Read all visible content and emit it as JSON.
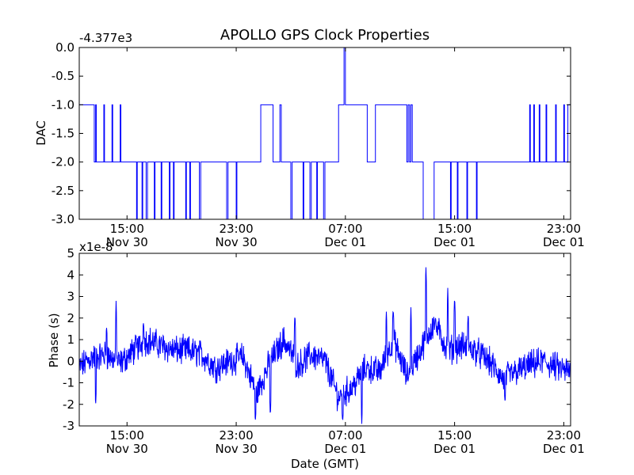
{
  "figure": {
    "title": "APOLLO GPS Clock Properties"
  },
  "chart_data": [
    {
      "type": "line",
      "panel": "top",
      "ylabel": "DAC",
      "offset_label": "-4.377e3",
      "ylim": [
        -3.0,
        0.0
      ],
      "xlim_hours": [
        11.5,
        47.5
      ],
      "y_ticks": [
        "0.0",
        "-0.5",
        "-1.0",
        "-1.5",
        "-2.0",
        "-2.5",
        "-3.0"
      ],
      "y_tick_values": [
        0.0,
        -0.5,
        -1.0,
        -1.5,
        -2.0,
        -2.5,
        -3.0
      ],
      "x_ticks": [
        {
          "time": "15:00",
          "date": "Nov 30",
          "hour": 15
        },
        {
          "time": "23:00",
          "date": "Nov 30",
          "hour": 23
        },
        {
          "time": "07:00",
          "date": "Dec 01",
          "hour": 31
        },
        {
          "time": "15:00",
          "date": "Dec 01",
          "hour": 39
        },
        {
          "time": "23:00",
          "date": "Dec 01",
          "hour": 47
        }
      ],
      "series": [
        {
          "color": "#0000ff",
          "steps": [
            [
              11.5,
              -1
            ],
            [
              12.6,
              -2
            ],
            [
              12.7,
              -1
            ],
            [
              12.75,
              -2
            ],
            [
              13.3,
              -1
            ],
            [
              13.35,
              -2
            ],
            [
              13.9,
              -1
            ],
            [
              13.95,
              -2
            ],
            [
              14.5,
              -1
            ],
            [
              14.55,
              -2
            ],
            [
              15.7,
              -3
            ],
            [
              15.75,
              -2
            ],
            [
              16.1,
              -3
            ],
            [
              16.15,
              -2
            ],
            [
              16.4,
              -3
            ],
            [
              16.5,
              -2
            ],
            [
              17,
              -3
            ],
            [
              17.05,
              -2
            ],
            [
              17.5,
              -3
            ],
            [
              17.55,
              -2
            ],
            [
              18.1,
              -3
            ],
            [
              18.15,
              -2
            ],
            [
              18.4,
              -3
            ],
            [
              18.45,
              -2
            ],
            [
              19.3,
              -3
            ],
            [
              19.35,
              -2
            ],
            [
              19.6,
              -3
            ],
            [
              19.65,
              -2
            ],
            [
              20.3,
              -3
            ],
            [
              20.4,
              -2
            ],
            [
              22.3,
              -3
            ],
            [
              22.4,
              -2
            ],
            [
              23,
              -3
            ],
            [
              23.05,
              -2
            ],
            [
              23.2,
              -2
            ],
            [
              24.8,
              -1
            ],
            [
              25.7,
              -2
            ],
            [
              26.2,
              -1
            ],
            [
              26.3,
              -2
            ],
            [
              27,
              -3
            ],
            [
              27.1,
              -2
            ],
            [
              27.9,
              -3
            ],
            [
              27.95,
              -2
            ],
            [
              28.4,
              -3
            ],
            [
              28.5,
              -2
            ],
            [
              28.9,
              -3
            ],
            [
              28.95,
              -2
            ],
            [
              29.4,
              -3
            ],
            [
              29.5,
              -2
            ],
            [
              30.5,
              -1
            ],
            [
              30.9,
              0
            ],
            [
              31.0,
              -1
            ],
            [
              31.5,
              -1
            ],
            [
              32.6,
              -2
            ],
            [
              33.2,
              -1
            ],
            [
              34.9,
              -1
            ],
            [
              35.5,
              -2
            ],
            [
              35.6,
              -1
            ],
            [
              35.7,
              -2
            ],
            [
              35.8,
              -1
            ],
            [
              35.9,
              -2
            ],
            [
              36.7,
              -3
            ],
            [
              37.5,
              -2
            ],
            [
              38.7,
              -3
            ],
            [
              38.75,
              -2
            ],
            [
              39.2,
              -3
            ],
            [
              39.25,
              -2
            ],
            [
              39.9,
              -3
            ],
            [
              39.95,
              -2
            ],
            [
              40.6,
              -3
            ],
            [
              40.65,
              -2
            ],
            [
              44.5,
              -1
            ],
            [
              44.55,
              -2
            ],
            [
              44.8,
              -1
            ],
            [
              44.85,
              -2
            ],
            [
              45.2,
              -1
            ],
            [
              45.25,
              -2
            ],
            [
              45.7,
              -1
            ],
            [
              45.75,
              -2
            ],
            [
              46.4,
              -1
            ],
            [
              46.45,
              -2
            ],
            [
              47.0,
              -1
            ],
            [
              47.05,
              -2
            ],
            [
              47.3,
              -1
            ],
            [
              47.5,
              -1
            ]
          ]
        }
      ]
    },
    {
      "type": "line",
      "panel": "bottom",
      "ylabel": "Phase (s)",
      "xlabel": "Date (GMT)",
      "scale_label": "x1e-8",
      "ylim": [
        -3,
        5
      ],
      "xlim_hours": [
        11.5,
        47.5
      ],
      "y_ticks": [
        "5",
        "4",
        "3",
        "2",
        "1",
        "0",
        "-1",
        "-2",
        "-3"
      ],
      "y_tick_values": [
        5,
        4,
        3,
        2,
        1,
        0,
        -1,
        -2,
        -3
      ],
      "x_ticks": [
        {
          "time": "15:00",
          "date": "Nov 30",
          "hour": 15
        },
        {
          "time": "23:00",
          "date": "Nov 30",
          "hour": 23
        },
        {
          "time": "07:00",
          "date": "Dec 01",
          "hour": 31
        },
        {
          "time": "15:00",
          "date": "Dec 01",
          "hour": 39
        },
        {
          "time": "23:00",
          "date": "Dec 01",
          "hour": 47
        }
      ],
      "series": [
        {
          "color": "#0000ff",
          "trend": [
            [
              11.5,
              -0.3
            ],
            [
              12.5,
              0.2
            ],
            [
              13.5,
              0.3
            ],
            [
              14.5,
              -0.1
            ],
            [
              15.5,
              0.5
            ],
            [
              16.5,
              1.0
            ],
            [
              17.5,
              0.7
            ],
            [
              18.5,
              0.5
            ],
            [
              19.5,
              0.5
            ],
            [
              20.5,
              0.3
            ],
            [
              21.5,
              -0.3
            ],
            [
              22.5,
              0.0
            ],
            [
              23.5,
              0.2
            ],
            [
              24.5,
              -1.5
            ],
            [
              25.5,
              0.0
            ],
            [
              26.5,
              1.0
            ],
            [
              27.5,
              -0.2
            ],
            [
              28.5,
              0.3
            ],
            [
              29.5,
              0.0
            ],
            [
              30.5,
              -1.7
            ],
            [
              31.5,
              -1.2
            ],
            [
              32.5,
              -0.3
            ],
            [
              33.5,
              -0.5
            ],
            [
              34.5,
              1.0
            ],
            [
              35.5,
              -0.7
            ],
            [
              36.5,
              0.5
            ],
            [
              37.5,
              1.8
            ],
            [
              38.5,
              0.5
            ],
            [
              39.5,
              0.7
            ],
            [
              40.5,
              0.5
            ],
            [
              41.5,
              0.0
            ],
            [
              42.5,
              -0.8
            ],
            [
              43.5,
              -0.5
            ],
            [
              44.5,
              -0.2
            ],
            [
              45.5,
              0.0
            ],
            [
              46.5,
              -0.3
            ],
            [
              47.5,
              -0.5
            ]
          ],
          "spikes": [
            [
              12.7,
              -2.1
            ],
            [
              13.5,
              1.6
            ],
            [
              14.2,
              2.8
            ],
            [
              16.2,
              1.8
            ],
            [
              24.4,
              -2.8
            ],
            [
              25.5,
              -2.6
            ],
            [
              27.3,
              2.2
            ],
            [
              30.8,
              -2.8
            ],
            [
              32.2,
              -2.9
            ],
            [
              34.0,
              2.3
            ],
            [
              34.5,
              2.4
            ],
            [
              35.8,
              2.5
            ],
            [
              36.9,
              4.5
            ],
            [
              37.6,
              2.0
            ],
            [
              38.5,
              3.4
            ],
            [
              39.0,
              3.0
            ],
            [
              40.0,
              2.2
            ],
            [
              42.7,
              -1.9
            ]
          ]
        }
      ]
    }
  ]
}
